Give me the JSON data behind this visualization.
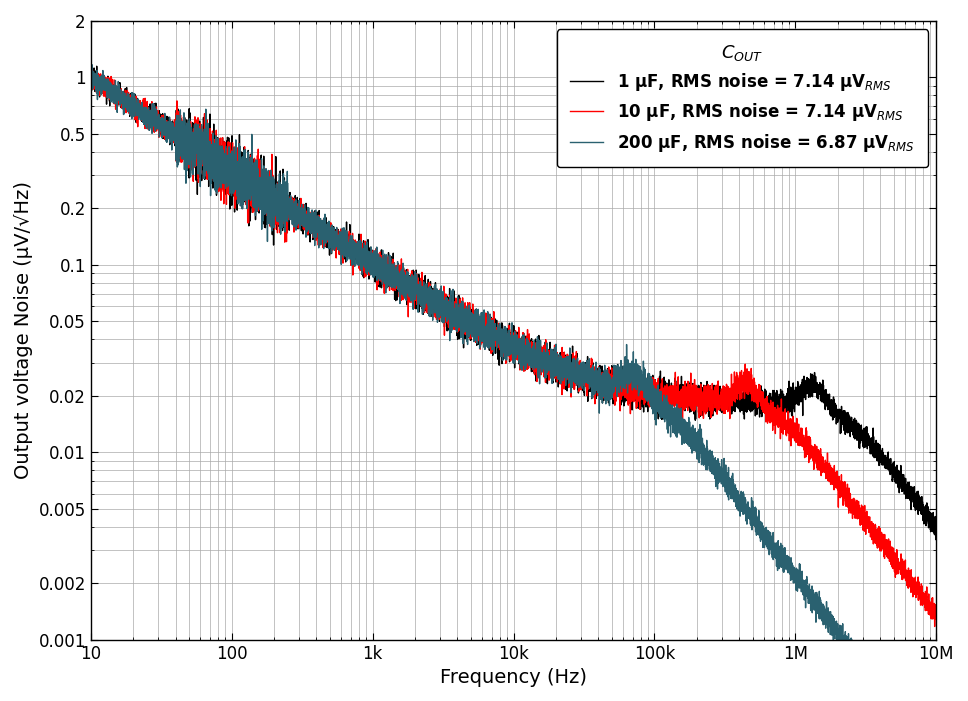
{
  "xlabel": "Frequency (Hz)",
  "ylabel": "Output voltage Noise (μV/√Hz)",
  "x_ticks": [
    10,
    100,
    1000,
    10000,
    100000,
    1000000,
    10000000
  ],
  "x_tick_labels": [
    "10",
    "100",
    "1k",
    "10k",
    "100k",
    "1M",
    "10M"
  ],
  "y_ticks": [
    0.001,
    0.002,
    0.005,
    0.01,
    0.02,
    0.05,
    0.1,
    0.2,
    0.5,
    1,
    2
  ],
  "y_tick_labels": [
    "0.001",
    "0.002",
    "0.005",
    "0.01",
    "0.02",
    "0.05",
    "0.1",
    "0.2",
    "0.5",
    "1",
    "2"
  ],
  "legend_title": "$C_{OUT}$",
  "series": [
    {
      "label": "1 μF, RMS noise = 7.14 μV$_{RMS}$",
      "color": "#000000",
      "lw": 1.0,
      "cout_uf": 1
    },
    {
      "label": "10 μF, RMS noise = 7.14 μV$_{RMS}$",
      "color": "#ff0000",
      "lw": 1.0,
      "cout_uf": 10
    },
    {
      "label": "200 μF, RMS noise = 6.87 μV$_{RMS}$",
      "color": "#2a6170",
      "lw": 1.0,
      "cout_uf": 200
    }
  ],
  "grid_color": "#aaaaaa",
  "grid_lw": 0.5,
  "background_color": "#ffffff",
  "legend_fontsize": 12,
  "axis_fontsize": 14,
  "tick_fontsize": 12
}
